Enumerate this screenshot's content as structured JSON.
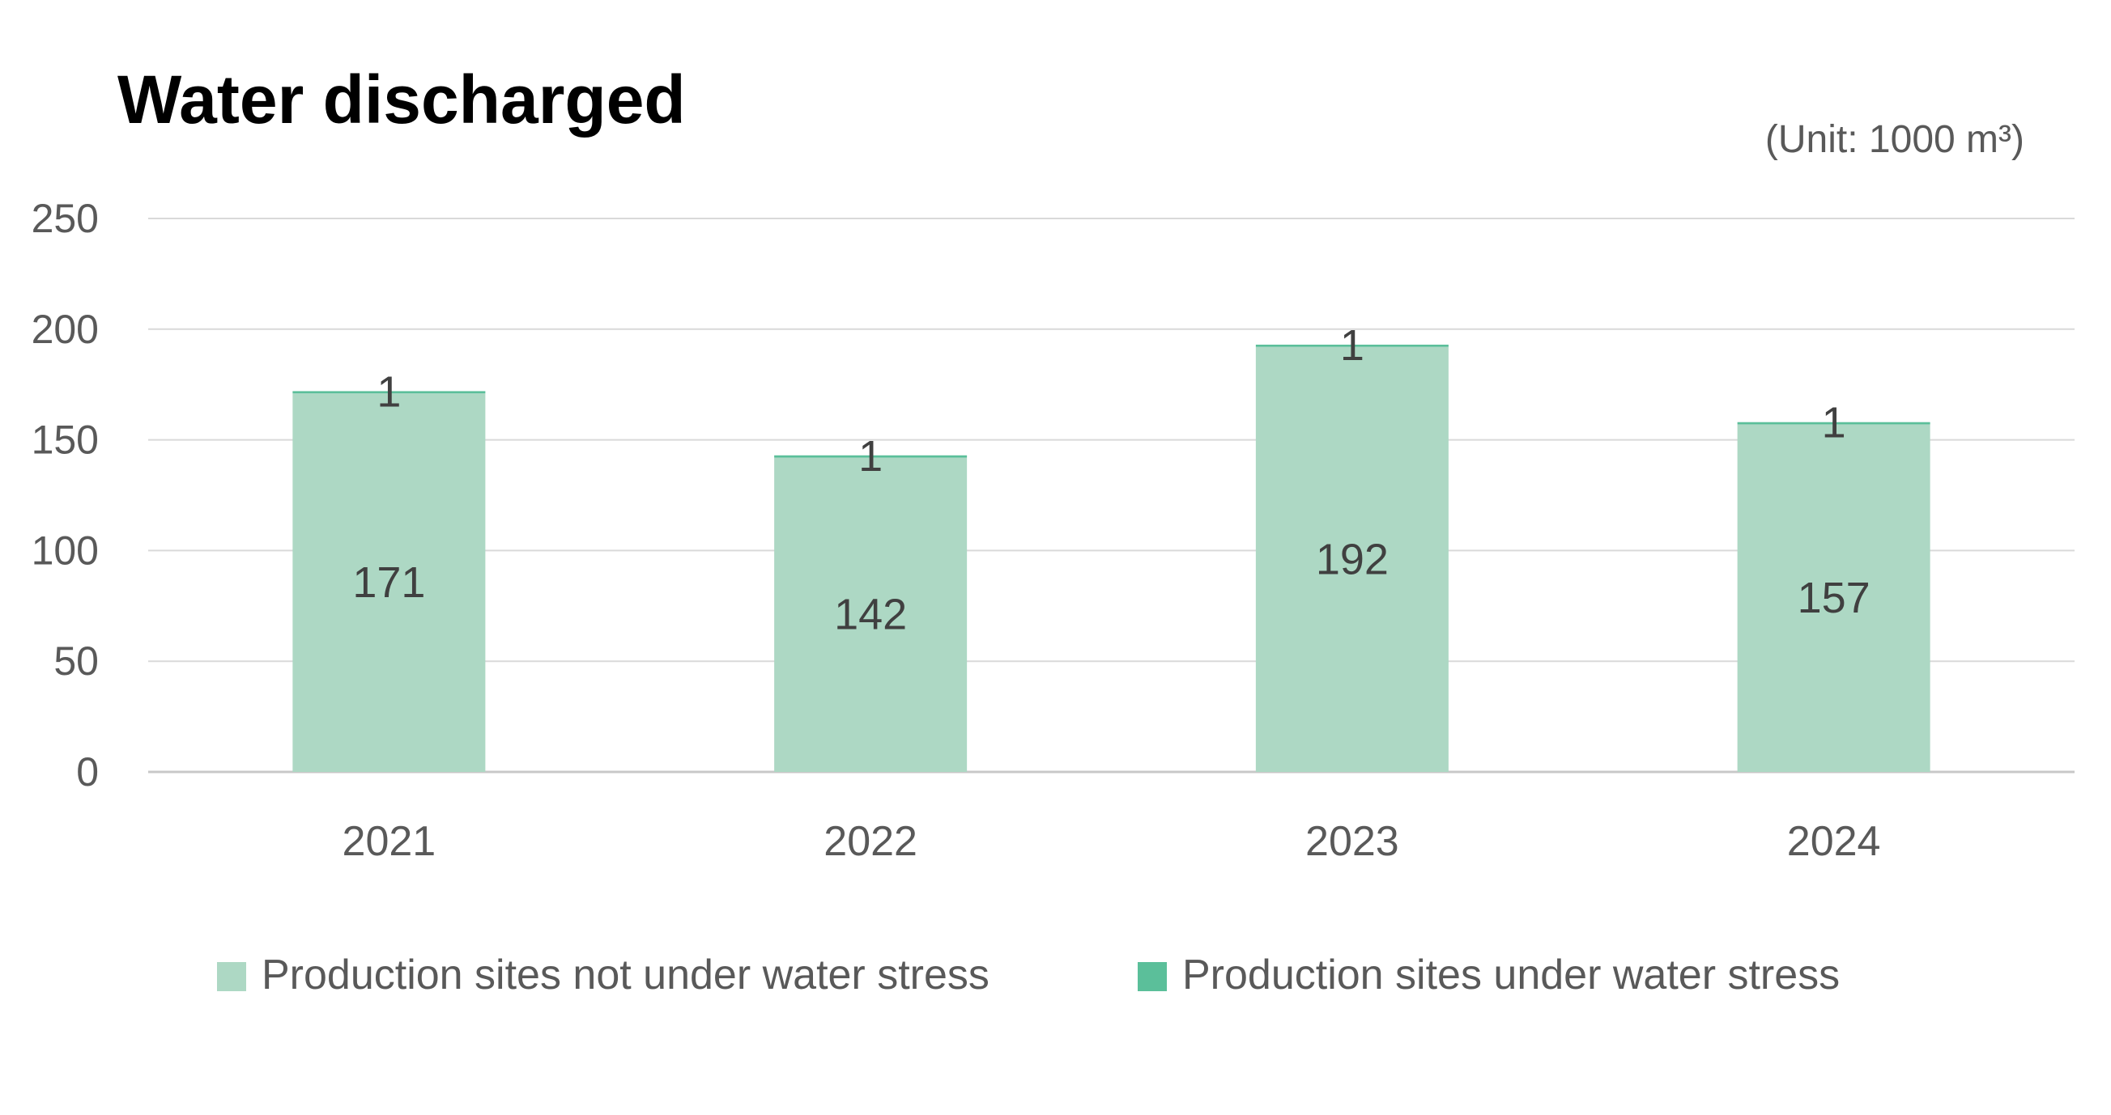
{
  "chart_data": {
    "type": "bar",
    "stacked": true,
    "title": "Water discharged",
    "unit_label": "(Unit: 1000 m³)",
    "categories": [
      "2021",
      "2022",
      "2023",
      "2024"
    ],
    "series": [
      {
        "name": "Production sites not under water stress",
        "values": [
          171,
          142,
          192,
          157
        ],
        "color": "#add8c4"
      },
      {
        "name": "Production sites under water stress",
        "values": [
          1,
          1,
          1,
          1
        ],
        "color": "#5bbf9a"
      }
    ],
    "ylim": [
      0,
      250
    ],
    "yticks": [
      "0",
      "50",
      "100",
      "150",
      "200",
      "250"
    ],
    "xlabel": "",
    "ylabel": "",
    "grid": true,
    "legend_position": "bottom"
  }
}
